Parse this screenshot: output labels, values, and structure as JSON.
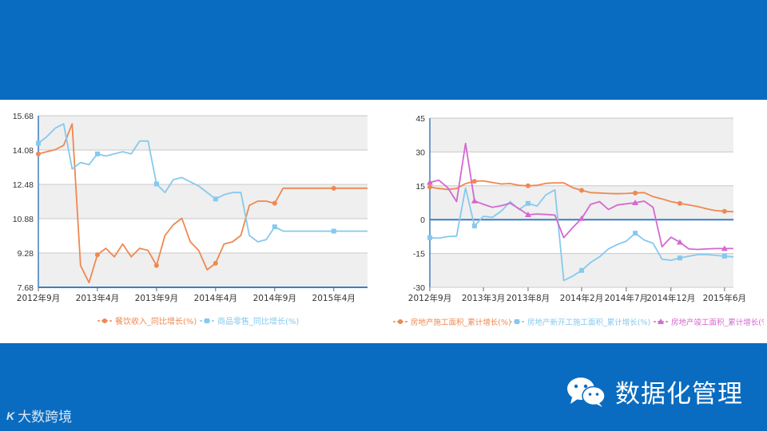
{
  "colors": {
    "background_band": "#0a6cc0",
    "orange": "#ef8850",
    "lightblue": "#86c9ee",
    "magenta": "#d468d0",
    "axis": "#3b7fc0",
    "grid_band": "#efefef"
  },
  "brand": {
    "text": "数据化管理",
    "icon": "wechat-icon"
  },
  "watermark": {
    "logo": "K",
    "text": "大数跨境"
  },
  "chart_data": [
    {
      "type": "line",
      "title": "",
      "xlabel": "",
      "ylabel": "",
      "ylim": [
        7.68,
        15.68
      ],
      "yticks": [
        "15.68",
        "14.08",
        "12.48",
        "10.88",
        "9.28",
        "7.68"
      ],
      "x_tick_labels": [
        {
          "label": "2012年9月",
          "index": 0
        },
        {
          "label": "2013年4月",
          "index": 7
        },
        {
          "label": "2013年9月",
          "index": 14
        },
        {
          "label": "2014年4月",
          "index": 21
        },
        {
          "label": "2014年9月",
          "index": 28
        },
        {
          "label": "2015年4月",
          "index": 35
        }
      ],
      "n_points": 40,
      "grid": true,
      "legend_position": "bottom",
      "series": [
        {
          "name": "餐饮收入_同比增长(%)",
          "color": "#ef8850",
          "marker": "circle",
          "marker_indices": [
            0,
            7,
            14,
            21,
            28,
            35
          ],
          "values": [
            13.9,
            14.0,
            14.1,
            14.3,
            15.3,
            8.7,
            7.9,
            9.2,
            9.5,
            9.1,
            9.7,
            9.1,
            9.5,
            9.4,
            8.7,
            10.1,
            10.6,
            10.9,
            9.8,
            9.4,
            8.5,
            8.8,
            9.7,
            9.8,
            10.1,
            11.5,
            11.7,
            11.7,
            11.6,
            12.3,
            12.3,
            12.3,
            12.3,
            12.3,
            12.3,
            12.3,
            12.3,
            12.3,
            12.3,
            12.3
          ]
        },
        {
          "name": "商品零售_同比增长(%)",
          "color": "#86c9ee",
          "marker": "square",
          "marker_indices": [
            0,
            7,
            14,
            21,
            28,
            35
          ],
          "values": [
            14.4,
            14.7,
            15.1,
            15.3,
            13.2,
            13.5,
            13.4,
            13.9,
            13.8,
            13.9,
            14.0,
            13.9,
            14.5,
            14.5,
            12.5,
            12.1,
            12.7,
            12.8,
            12.6,
            12.4,
            12.1,
            11.8,
            12.0,
            12.1,
            12.1,
            10.1,
            9.8,
            9.9,
            10.5,
            10.3,
            10.3,
            10.3,
            10.3,
            10.3,
            10.3,
            10.3,
            10.3,
            10.3,
            10.3,
            10.3
          ]
        }
      ]
    },
    {
      "type": "line",
      "title": "",
      "xlabel": "",
      "ylabel": "",
      "ylim": [
        -30,
        45
      ],
      "yticks": [
        "45",
        "30",
        "15",
        "0",
        "-15",
        "-30"
      ],
      "x_tick_labels": [
        {
          "label": "2012年9月",
          "index": 0
        },
        {
          "label": "2013年3月",
          "index": 6
        },
        {
          "label": "2013年8月",
          "index": 11
        },
        {
          "label": "2014年2月",
          "index": 17
        },
        {
          "label": "2014年7月",
          "index": 22
        },
        {
          "label": "2014年12月",
          "index": 27
        },
        {
          "label": "2015年6月",
          "index": 33
        }
      ],
      "n_points": 35,
      "grid": true,
      "legend_position": "bottom",
      "series": [
        {
          "name": "房地产施工面积_累计增长(%)",
          "color": "#ef8850",
          "marker": "circle",
          "marker_indices": [
            0,
            5,
            11,
            17,
            23,
            28,
            33
          ],
          "values": [
            14.5,
            13.8,
            13.4,
            13.8,
            16.0,
            17.0,
            17.2,
            16.5,
            15.8,
            16.0,
            15.2,
            15.0,
            15.2,
            16.1,
            16.3,
            16.3,
            14.2,
            13.0,
            12.0,
            11.8,
            11.6,
            11.5,
            11.6,
            11.8,
            12.0,
            10.2,
            9.2,
            8.0,
            7.2,
            6.5,
            5.8,
            4.8,
            4.0,
            3.7,
            3.5
          ]
        },
        {
          "name": "房地产新开工施工面积_累计增长(%)",
          "color": "#86c9ee",
          "marker": "square",
          "marker_indices": [
            0,
            5,
            11,
            17,
            23,
            28,
            33
          ],
          "values": [
            -8.0,
            -8.2,
            -7.5,
            -7.3,
            14.0,
            -2.8,
            1.5,
            1.0,
            3.8,
            8.0,
            4.5,
            7.2,
            6.0,
            11.0,
            13.2,
            -27.0,
            -25.0,
            -22.5,
            -19.0,
            -16.5,
            -13.0,
            -11.0,
            -9.5,
            -6.0,
            -9.0,
            -10.5,
            -17.5,
            -18.0,
            -17.0,
            -16.2,
            -15.5,
            -15.5,
            -15.8,
            -16.2,
            -16.5
          ]
        },
        {
          "name": "房地产竣工面积_累计增长(%)",
          "color": "#d468d0",
          "marker": "triangle",
          "marker_indices": [
            0,
            5,
            11,
            17,
            23,
            28,
            33
          ],
          "values": [
            16.5,
            17.5,
            14.2,
            8.0,
            33.8,
            8.3,
            6.8,
            5.5,
            6.2,
            7.3,
            4.8,
            2.2,
            2.5,
            2.3,
            2.0,
            -8.0,
            -3.5,
            0.5,
            6.8,
            8.0,
            4.5,
            6.5,
            7.0,
            7.5,
            8.2,
            5.5,
            -12.0,
            -7.8,
            -10.0,
            -13.0,
            -13.2,
            -13.0,
            -12.8,
            -12.8,
            -12.8
          ]
        }
      ]
    }
  ]
}
